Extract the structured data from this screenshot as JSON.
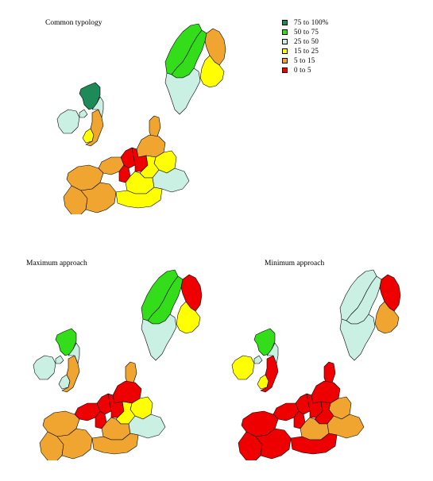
{
  "titles": {
    "common": "Common typology",
    "maximum": "Maximum approach",
    "minimum": "Minimum approach"
  },
  "legend": [
    {
      "label": "75 to  100%",
      "color": "#1d8a57"
    },
    {
      "label": "50 to   75",
      "color": "#33dd1a"
    },
    {
      "label": "25 to   50",
      "color": "#c9f0e3"
    },
    {
      "label": "15 to   25",
      "color": "#ffff00"
    },
    {
      "label": "5 to   15",
      "color": "#f0a530"
    },
    {
      "label": "0 to    5",
      "color": "#ee0000"
    }
  ],
  "region_classes": {
    "common": {
      "scotland": 0,
      "ireland": 2,
      "northern_ireland": 2,
      "wales": 3,
      "england": 4,
      "east_england": 2,
      "norway": 1,
      "sweden_n": 1,
      "sweden_s": 2,
      "finland_n": 4,
      "finland_s": 3,
      "denmark": 4,
      "benelux": 5,
      "north_france": 4,
      "paris": 5,
      "west_france": 4,
      "south_france": 4,
      "sw_france": 4,
      "germany_n": 4,
      "germany_w": 5,
      "germany_c": 3,
      "germany_e": 3,
      "germany_s": 3,
      "austria": 2,
      "alps": 3
    },
    "maximum": {
      "scotland": 1,
      "ireland": 2,
      "northern_ireland": 2,
      "wales": 2,
      "england": 4,
      "east_england": 2,
      "norway": 1,
      "sweden_n": 1,
      "sweden_s": 2,
      "finland_n": 5,
      "finland_s": 3,
      "denmark": 4,
      "benelux": 5,
      "north_france": 5,
      "paris": 5,
      "west_france": 4,
      "south_france": 4,
      "sw_france": 4,
      "germany_n": 5,
      "germany_w": 5,
      "germany_c": 3,
      "germany_e": 3,
      "germany_s": 4,
      "austria": 2,
      "alps": 4
    },
    "minimum": {
      "scotland": 1,
      "ireland": 3,
      "northern_ireland": 2,
      "wales": 3,
      "england": 5,
      "east_england": 2,
      "norway": 2,
      "sweden_n": 2,
      "sweden_s": 2,
      "finland_n": 5,
      "finland_s": 4,
      "denmark": 5,
      "benelux": 5,
      "north_france": 5,
      "paris": 5,
      "west_france": 5,
      "south_france": 5,
      "sw_france": 5,
      "germany_n": 5,
      "germany_w": 5,
      "germany_c": 5,
      "germany_e": 4,
      "germany_s": 4,
      "austria": 4,
      "alps": 5
    }
  }
}
